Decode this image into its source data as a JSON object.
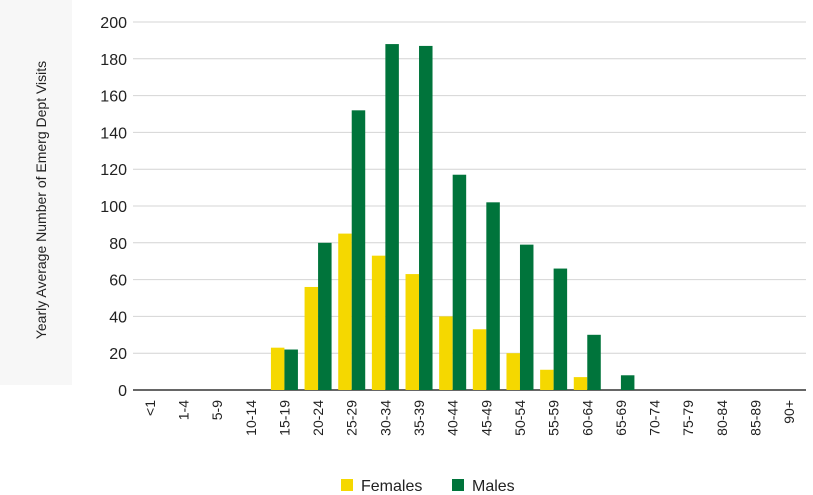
{
  "chart_data": {
    "type": "bar",
    "title": "",
    "xlabel": "",
    "ylabel": "Yearly Average Number of Emerg Dept Visits",
    "categories": [
      "<1",
      "1-4",
      "5-9",
      "10-14",
      "15-19",
      "20-24",
      "25-29",
      "30-34",
      "35-39",
      "40-44",
      "45-49",
      "50-54",
      "55-59",
      "60-64",
      "65-69",
      "70-74",
      "75-79",
      "80-84",
      "85-89",
      "90+"
    ],
    "series": [
      {
        "name": "Females",
        "color": "#F5D800",
        "values": [
          0,
          0,
          0,
          0,
          23,
          56,
          85,
          73,
          63,
          40,
          33,
          20,
          11,
          7,
          0,
          0,
          0,
          0,
          0,
          0
        ]
      },
      {
        "name": "Males",
        "color": "#00743B",
        "values": [
          0,
          0,
          0,
          0,
          22,
          80,
          152,
          188,
          187,
          117,
          102,
          79,
          66,
          30,
          8,
          0,
          0,
          0,
          0,
          0
        ]
      }
    ],
    "ylim": [
      0,
      200
    ],
    "yticks": [
      0,
      20,
      40,
      60,
      80,
      100,
      120,
      140,
      160,
      180,
      200
    ],
    "grid": true,
    "legend": "bottom-center"
  }
}
